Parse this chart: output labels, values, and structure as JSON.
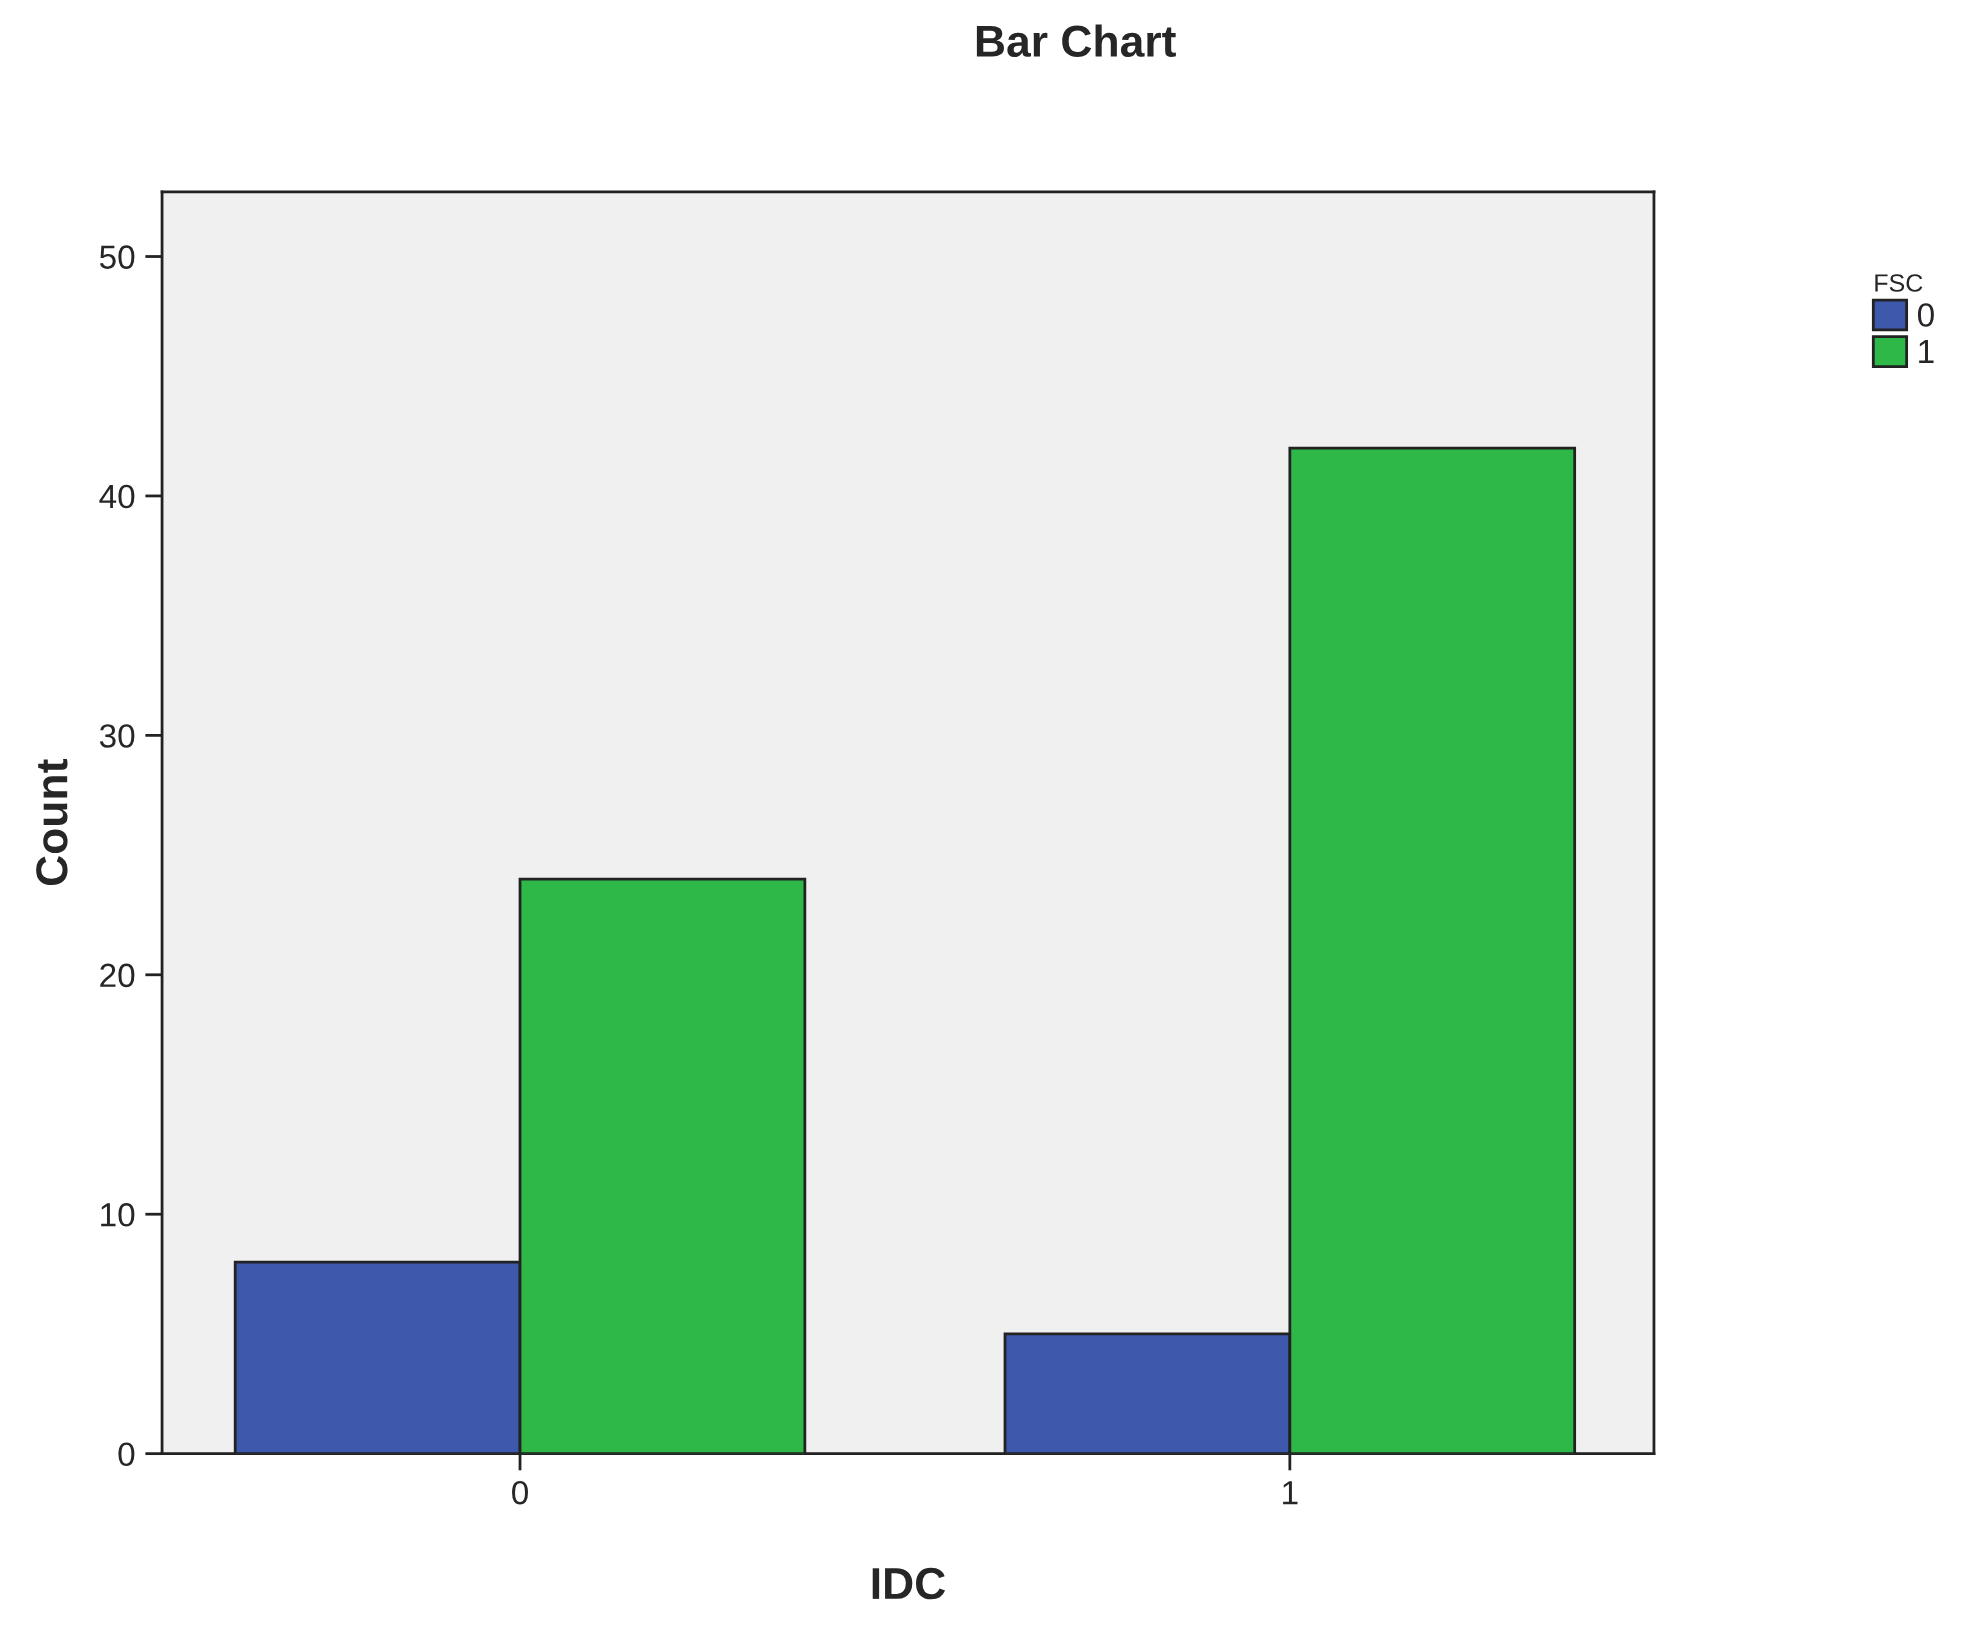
{
  "chart_data": {
    "type": "bar",
    "title": "Bar Chart",
    "xlabel": "IDC",
    "ylabel": "Count",
    "legend_title": "FSC",
    "categories": [
      "0",
      "1"
    ],
    "series": [
      {
        "name": "0",
        "color": "#3e58ac",
        "values": [
          8,
          5
        ]
      },
      {
        "name": "1",
        "color": "#2eb848",
        "values": [
          24,
          42
        ]
      }
    ],
    "ylim": [
      0,
      52.7
    ],
    "yticks": [
      0,
      10,
      20,
      30,
      40,
      50
    ],
    "grid": false,
    "legend": "top right"
  }
}
